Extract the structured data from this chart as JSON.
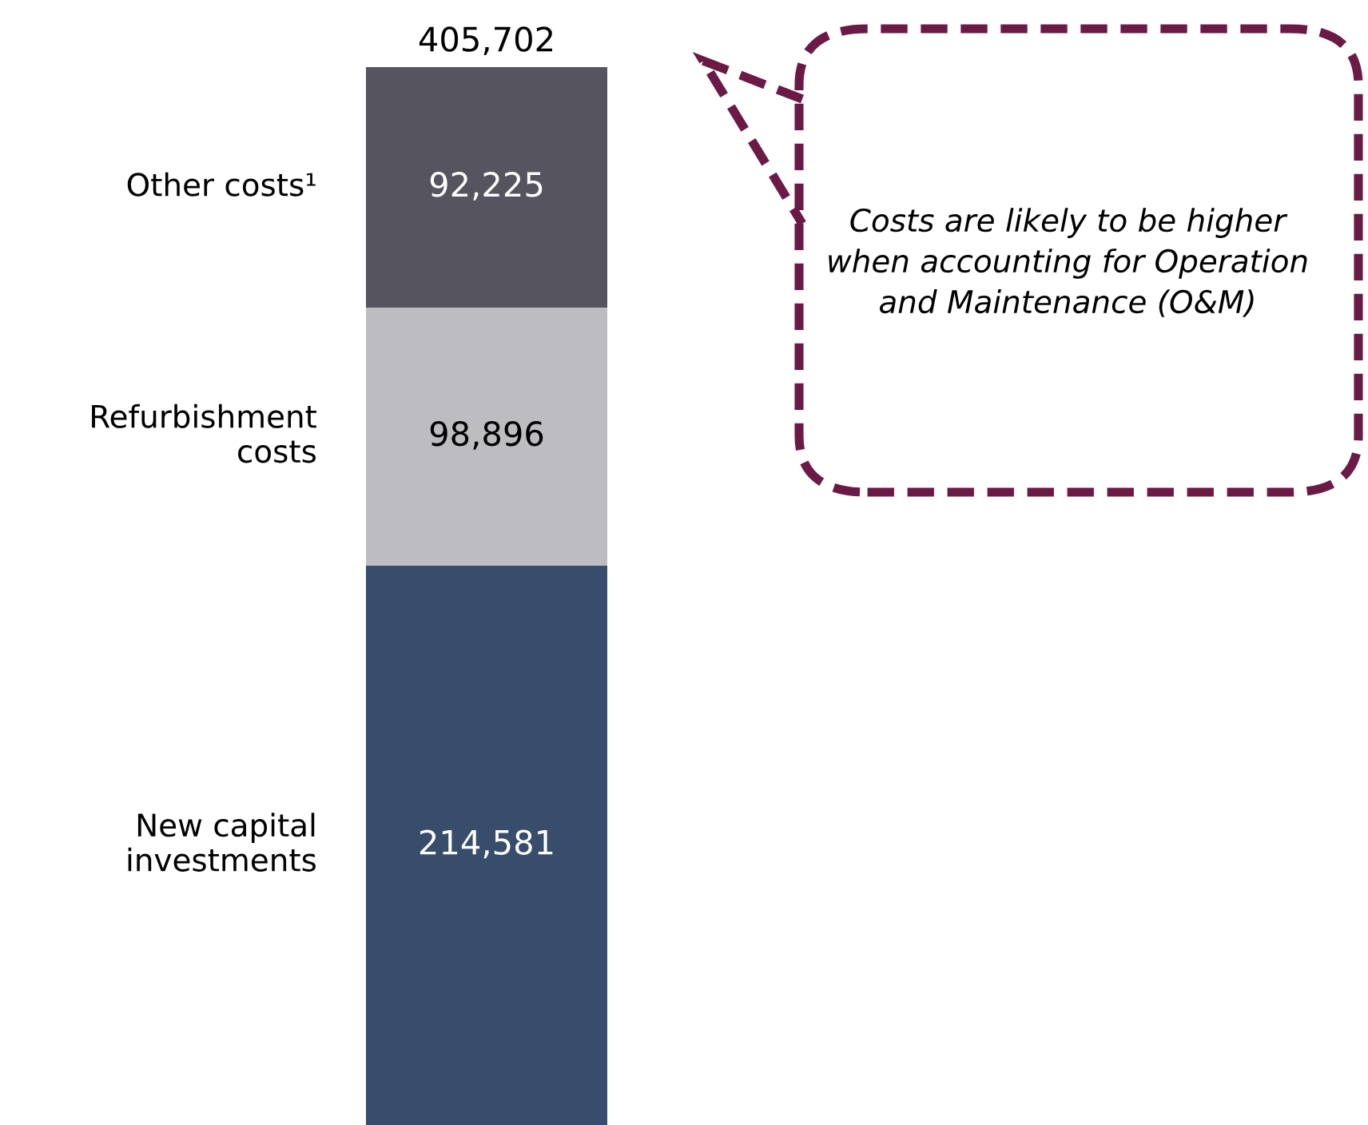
{
  "chart_data": {
    "type": "bar",
    "stacked": true,
    "categories": [
      null
    ],
    "series": [
      {
        "name": "New capital investments",
        "color": "#384d6b",
        "values": [
          214581
        ],
        "value_labels": [
          "214,581"
        ]
      },
      {
        "name": "Refurbishment costs",
        "color": "#bdbcc1",
        "values": [
          98896
        ],
        "value_labels": [
          "98,896"
        ]
      },
      {
        "name": "Other costs¹",
        "color": "#55545f",
        "values": [
          92225
        ],
        "value_labels": [
          "92,225"
        ]
      }
    ],
    "totals": [
      "405,702"
    ],
    "annotations": [
      "Costs are likely to be higher when accounting for Operation and Maintenance (O&M)"
    ],
    "legend": false
  }
}
